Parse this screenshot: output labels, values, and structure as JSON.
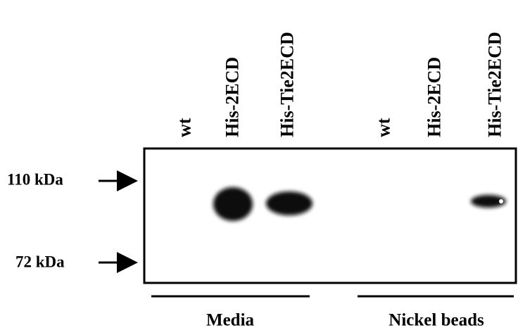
{
  "lanes": [
    "wt",
    "His-2ECD",
    "His-Tie2ECD",
    "wt",
    "His-2ECD",
    "His-Tie2ECD"
  ],
  "markers": [
    "110 kDa",
    "72 kDa"
  ],
  "groups": [
    "Media",
    "Nickel beads"
  ]
}
